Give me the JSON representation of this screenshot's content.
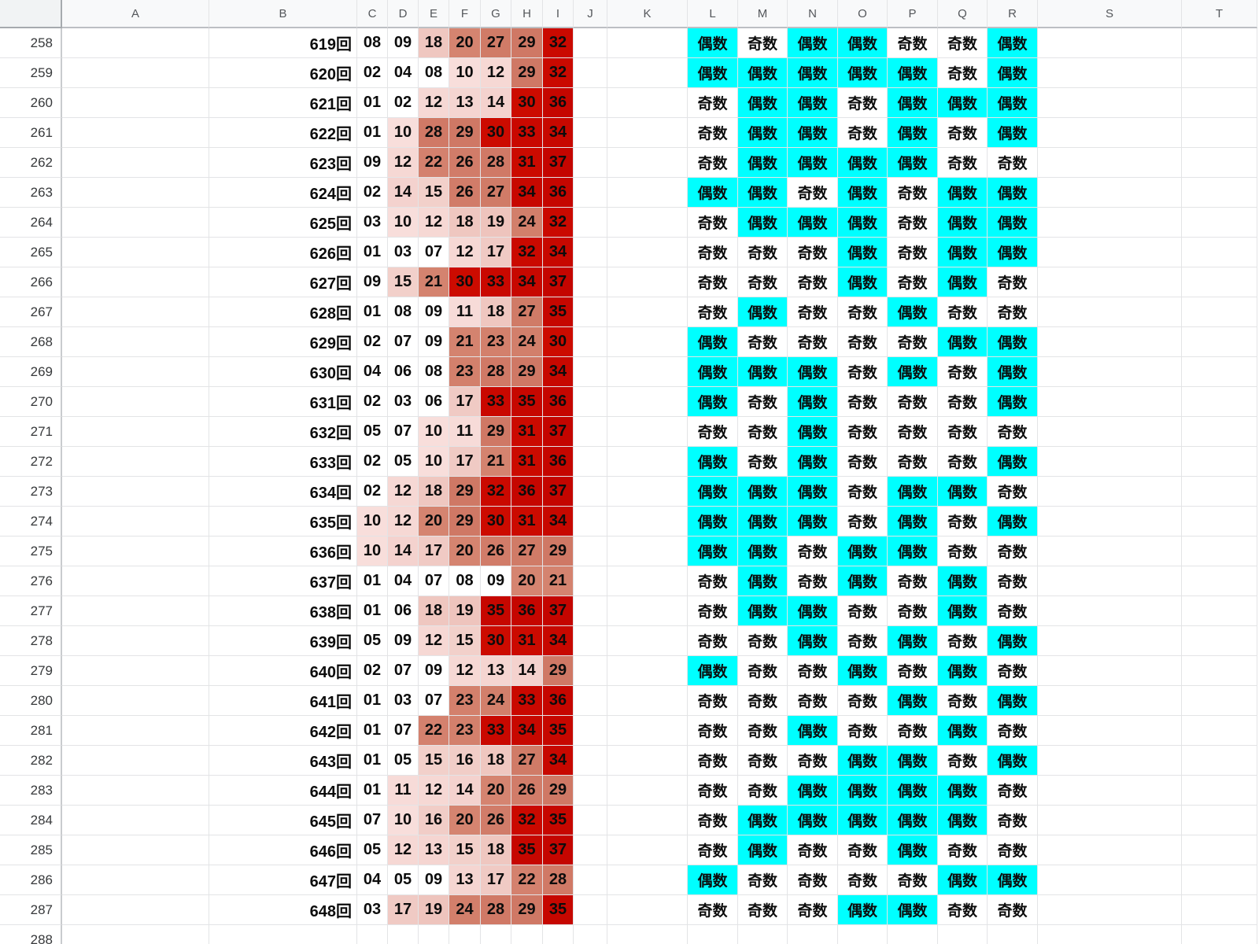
{
  "sheet": {
    "col_headers": [
      "A",
      "B",
      "C",
      "D",
      "E",
      "F",
      "G",
      "H",
      "I",
      "J",
      "K",
      "L",
      "M",
      "N",
      "O",
      "P",
      "Q",
      "R",
      "S",
      "T"
    ],
    "parity_labels": {
      "even": "偶数",
      "odd": "奇数"
    },
    "colors": {
      "even_bg": "#00ffff",
      "odd_bg": "#ffffff",
      "heat_stops": [
        [
          1,
          "#ffffff"
        ],
        [
          9,
          "#ffffff"
        ],
        [
          10,
          "#f8dedb"
        ],
        [
          19,
          "#eec4bd"
        ],
        [
          20,
          "#d58470"
        ],
        [
          29,
          "#cf7865"
        ],
        [
          30,
          "#cc0b00"
        ],
        [
          37,
          "#c40500"
        ]
      ]
    },
    "rows": [
      {
        "n": "258",
        "draw": "619回",
        "nums": [
          "08",
          "09",
          "18",
          "20",
          "27",
          "29",
          "32"
        ],
        "parity": [
          "偶数",
          "奇数",
          "偶数",
          "偶数",
          "奇数",
          "奇数",
          "偶数"
        ]
      },
      {
        "n": "259",
        "draw": "620回",
        "nums": [
          "02",
          "04",
          "08",
          "10",
          "12",
          "29",
          "32"
        ],
        "parity": [
          "偶数",
          "偶数",
          "偶数",
          "偶数",
          "偶数",
          "奇数",
          "偶数"
        ]
      },
      {
        "n": "260",
        "draw": "621回",
        "nums": [
          "01",
          "02",
          "12",
          "13",
          "14",
          "30",
          "36"
        ],
        "parity": [
          "奇数",
          "偶数",
          "偶数",
          "奇数",
          "偶数",
          "偶数",
          "偶数"
        ]
      },
      {
        "n": "261",
        "draw": "622回",
        "nums": [
          "01",
          "10",
          "28",
          "29",
          "30",
          "33",
          "34"
        ],
        "parity": [
          "奇数",
          "偶数",
          "偶数",
          "奇数",
          "偶数",
          "奇数",
          "偶数"
        ]
      },
      {
        "n": "262",
        "draw": "623回",
        "nums": [
          "09",
          "12",
          "22",
          "26",
          "28",
          "31",
          "37"
        ],
        "parity": [
          "奇数",
          "偶数",
          "偶数",
          "偶数",
          "偶数",
          "奇数",
          "奇数"
        ]
      },
      {
        "n": "263",
        "draw": "624回",
        "nums": [
          "02",
          "14",
          "15",
          "26",
          "27",
          "34",
          "36"
        ],
        "parity": [
          "偶数",
          "偶数",
          "奇数",
          "偶数",
          "奇数",
          "偶数",
          "偶数"
        ]
      },
      {
        "n": "264",
        "draw": "625回",
        "nums": [
          "03",
          "10",
          "12",
          "18",
          "19",
          "24",
          "32"
        ],
        "parity": [
          "奇数",
          "偶数",
          "偶数",
          "偶数",
          "奇数",
          "偶数",
          "偶数"
        ]
      },
      {
        "n": "265",
        "draw": "626回",
        "nums": [
          "01",
          "03",
          "07",
          "12",
          "17",
          "32",
          "34"
        ],
        "parity": [
          "奇数",
          "奇数",
          "奇数",
          "偶数",
          "奇数",
          "偶数",
          "偶数"
        ]
      },
      {
        "n": "266",
        "draw": "627回",
        "nums": [
          "09",
          "15",
          "21",
          "30",
          "33",
          "34",
          "37"
        ],
        "parity": [
          "奇数",
          "奇数",
          "奇数",
          "偶数",
          "奇数",
          "偶数",
          "奇数"
        ]
      },
      {
        "n": "267",
        "draw": "628回",
        "nums": [
          "01",
          "08",
          "09",
          "11",
          "18",
          "27",
          "35"
        ],
        "parity": [
          "奇数",
          "偶数",
          "奇数",
          "奇数",
          "偶数",
          "奇数",
          "奇数"
        ]
      },
      {
        "n": "268",
        "draw": "629回",
        "nums": [
          "02",
          "07",
          "09",
          "21",
          "23",
          "24",
          "30"
        ],
        "parity": [
          "偶数",
          "奇数",
          "奇数",
          "奇数",
          "奇数",
          "偶数",
          "偶数"
        ]
      },
      {
        "n": "269",
        "draw": "630回",
        "nums": [
          "04",
          "06",
          "08",
          "23",
          "28",
          "29",
          "34"
        ],
        "parity": [
          "偶数",
          "偶数",
          "偶数",
          "奇数",
          "偶数",
          "奇数",
          "偶数"
        ]
      },
      {
        "n": "270",
        "draw": "631回",
        "nums": [
          "02",
          "03",
          "06",
          "17",
          "33",
          "35",
          "36"
        ],
        "parity": [
          "偶数",
          "奇数",
          "偶数",
          "奇数",
          "奇数",
          "奇数",
          "偶数"
        ]
      },
      {
        "n": "271",
        "draw": "632回",
        "nums": [
          "05",
          "07",
          "10",
          "11",
          "29",
          "31",
          "37"
        ],
        "parity": [
          "奇数",
          "奇数",
          "偶数",
          "奇数",
          "奇数",
          "奇数",
          "奇数"
        ]
      },
      {
        "n": "272",
        "draw": "633回",
        "nums": [
          "02",
          "05",
          "10",
          "17",
          "21",
          "31",
          "36"
        ],
        "parity": [
          "偶数",
          "奇数",
          "偶数",
          "奇数",
          "奇数",
          "奇数",
          "偶数"
        ]
      },
      {
        "n": "273",
        "draw": "634回",
        "nums": [
          "02",
          "12",
          "18",
          "29",
          "32",
          "36",
          "37"
        ],
        "parity": [
          "偶数",
          "偶数",
          "偶数",
          "奇数",
          "偶数",
          "偶数",
          "奇数"
        ]
      },
      {
        "n": "274",
        "draw": "635回",
        "nums": [
          "10",
          "12",
          "20",
          "29",
          "30",
          "31",
          "34"
        ],
        "parity": [
          "偶数",
          "偶数",
          "偶数",
          "奇数",
          "偶数",
          "奇数",
          "偶数"
        ]
      },
      {
        "n": "275",
        "draw": "636回",
        "nums": [
          "10",
          "14",
          "17",
          "20",
          "26",
          "27",
          "29"
        ],
        "parity": [
          "偶数",
          "偶数",
          "奇数",
          "偶数",
          "偶数",
          "奇数",
          "奇数"
        ]
      },
      {
        "n": "276",
        "draw": "637回",
        "nums": [
          "01",
          "04",
          "07",
          "08",
          "09",
          "20",
          "21"
        ],
        "parity": [
          "奇数",
          "偶数",
          "奇数",
          "偶数",
          "奇数",
          "偶数",
          "奇数"
        ]
      },
      {
        "n": "277",
        "draw": "638回",
        "nums": [
          "01",
          "06",
          "18",
          "19",
          "35",
          "36",
          "37"
        ],
        "parity": [
          "奇数",
          "偶数",
          "偶数",
          "奇数",
          "奇数",
          "偶数",
          "奇数"
        ]
      },
      {
        "n": "278",
        "draw": "639回",
        "nums": [
          "05",
          "09",
          "12",
          "15",
          "30",
          "31",
          "34"
        ],
        "parity": [
          "奇数",
          "奇数",
          "偶数",
          "奇数",
          "偶数",
          "奇数",
          "偶数"
        ]
      },
      {
        "n": "279",
        "draw": "640回",
        "nums": [
          "02",
          "07",
          "09",
          "12",
          "13",
          "14",
          "29"
        ],
        "parity": [
          "偶数",
          "奇数",
          "奇数",
          "偶数",
          "奇数",
          "偶数",
          "奇数"
        ]
      },
      {
        "n": "280",
        "draw": "641回",
        "nums": [
          "01",
          "03",
          "07",
          "23",
          "24",
          "33",
          "36"
        ],
        "parity": [
          "奇数",
          "奇数",
          "奇数",
          "奇数",
          "偶数",
          "奇数",
          "偶数"
        ]
      },
      {
        "n": "281",
        "draw": "642回",
        "nums": [
          "01",
          "07",
          "22",
          "23",
          "33",
          "34",
          "35"
        ],
        "parity": [
          "奇数",
          "奇数",
          "偶数",
          "奇数",
          "奇数",
          "偶数",
          "奇数"
        ]
      },
      {
        "n": "282",
        "draw": "643回",
        "nums": [
          "01",
          "05",
          "15",
          "16",
          "18",
          "27",
          "34"
        ],
        "parity": [
          "奇数",
          "奇数",
          "奇数",
          "偶数",
          "偶数",
          "奇数",
          "偶数"
        ]
      },
      {
        "n": "283",
        "draw": "644回",
        "nums": [
          "01",
          "11",
          "12",
          "14",
          "20",
          "26",
          "29"
        ],
        "parity": [
          "奇数",
          "奇数",
          "偶数",
          "偶数",
          "偶数",
          "偶数",
          "奇数"
        ]
      },
      {
        "n": "284",
        "draw": "645回",
        "nums": [
          "07",
          "10",
          "16",
          "20",
          "26",
          "32",
          "35"
        ],
        "parity": [
          "奇数",
          "偶数",
          "偶数",
          "偶数",
          "偶数",
          "偶数",
          "奇数"
        ]
      },
      {
        "n": "285",
        "draw": "646回",
        "nums": [
          "05",
          "12",
          "13",
          "15",
          "18",
          "35",
          "37"
        ],
        "parity": [
          "奇数",
          "偶数",
          "奇数",
          "奇数",
          "偶数",
          "奇数",
          "奇数"
        ]
      },
      {
        "n": "286",
        "draw": "647回",
        "nums": [
          "04",
          "05",
          "09",
          "13",
          "17",
          "22",
          "28"
        ],
        "parity": [
          "偶数",
          "奇数",
          "奇数",
          "奇数",
          "奇数",
          "偶数",
          "偶数"
        ]
      },
      {
        "n": "287",
        "draw": "648回",
        "nums": [
          "03",
          "17",
          "19",
          "24",
          "28",
          "29",
          "35"
        ],
        "parity": [
          "奇数",
          "奇数",
          "奇数",
          "偶数",
          "偶数",
          "奇数",
          "奇数"
        ]
      },
      {
        "n": "288",
        "draw": "",
        "nums": [],
        "parity": []
      }
    ]
  }
}
